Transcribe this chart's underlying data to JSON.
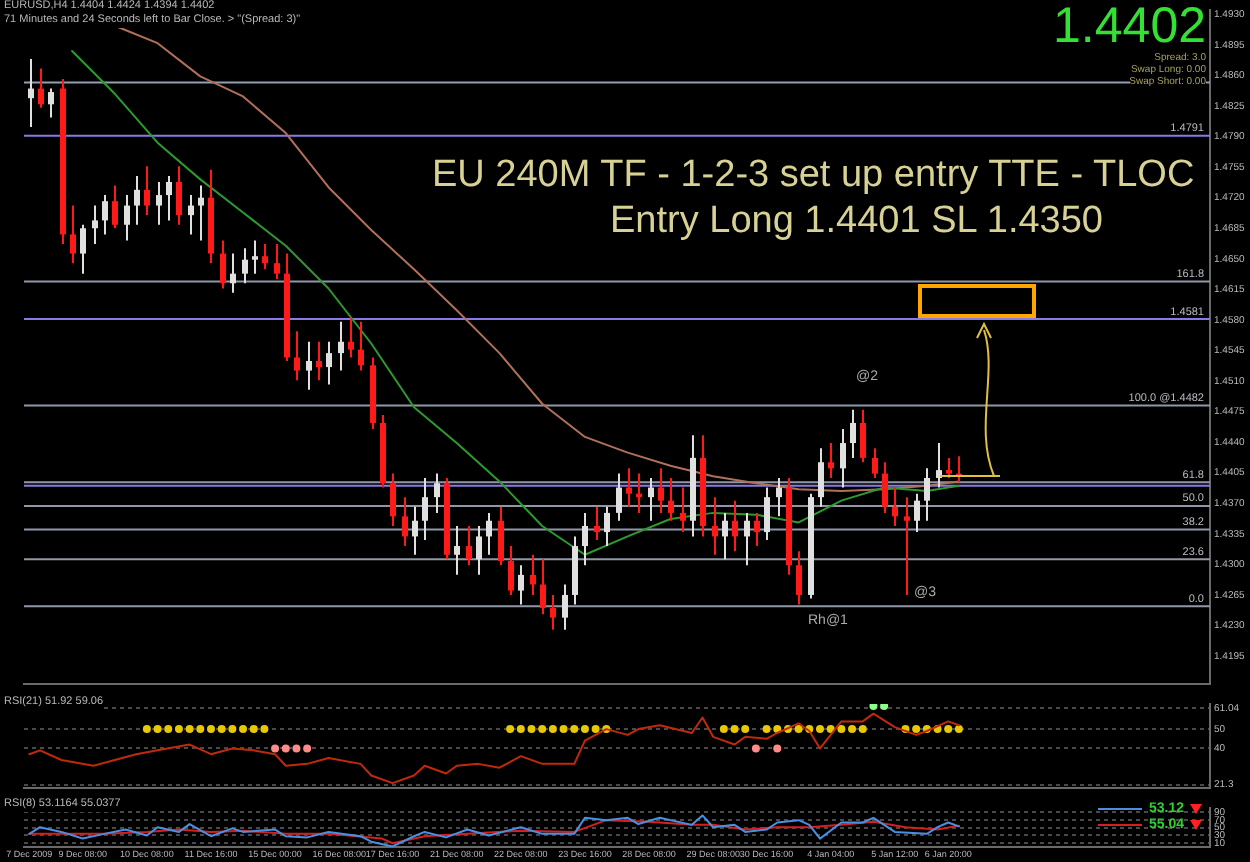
{
  "chart_data": [
    {
      "type": "candlestick",
      "title": "EU 240M TF - 1-2-3 set up entry TTE - TLOC",
      "subtitle": "Entry Long 1.4401 SL 1.4350",
      "annotations": [
        "EURUSD,H4 1.4404 1.4424 1.4394 1.4402",
        "71 Minutes and 24 Seconds left to Bar Close. > \"(Spread: 3)\"",
        "1.4402",
        "Spread: 3.0",
        "Swap Long: 0.00",
        "Swap Short: 0.00",
        "@2",
        "@3",
        "Rh@1",
        {
          "text": "161.8",
          "y": 1.4624
        },
        {
          "text": "61.8",
          "y": 1.4394
        },
        {
          "text": "50.0",
          "y": 1.4367
        },
        {
          "text": "38.2",
          "y": 1.434
        },
        {
          "text": "23.6",
          "y": 1.4306
        },
        {
          "text": "0.0",
          "y": 1.4252
        }
      ],
      "categories": [
        null,
        null,
        null,
        null,
        null,
        null,
        null,
        null,
        null,
        null,
        null,
        null,
        null,
        null,
        null,
        null,
        null,
        null,
        null,
        null,
        null,
        null,
        null,
        null,
        null,
        null,
        null,
        null,
        null,
        null,
        null,
        null,
        null,
        null,
        null,
        null,
        null,
        null,
        null,
        null,
        null,
        null,
        null,
        null,
        null,
        null,
        null,
        null,
        null,
        null,
        null,
        null,
        null,
        null,
        null,
        null,
        null,
        null,
        null,
        null,
        null,
        null,
        null,
        null,
        null,
        null,
        null,
        null,
        null,
        null,
        null,
        null,
        null,
        null,
        null,
        null,
        null,
        null,
        null,
        null,
        null,
        null,
        null,
        null,
        null,
        null,
        null,
        null,
        null,
        null,
        null,
        null,
        null,
        null,
        null,
        null,
        null,
        null,
        null,
        null,
        null,
        null,
        null,
        null,
        null,
        null,
        null,
        null,
        null,
        null,
        null
      ],
      "ohlc": [
        [
          1.4834,
          1.4879,
          1.4801,
          1.4845
        ],
        [
          1.4845,
          1.4868,
          1.4823,
          1.4827
        ],
        [
          1.4827,
          1.4845,
          1.4812,
          1.4841
        ],
        [
          1.4845,
          1.4856,
          1.4667,
          1.4678
        ],
        [
          1.4678,
          1.4711,
          1.4645,
          1.4656
        ],
        [
          1.4656,
          1.4689,
          1.4633,
          1.4685
        ],
        [
          1.4685,
          1.4711,
          1.4667,
          1.4694
        ],
        [
          1.4694,
          1.4723,
          1.4678,
          1.4716
        ],
        [
          1.4716,
          1.4734,
          1.4685,
          1.4689
        ],
        [
          1.4689,
          1.4723,
          1.4671,
          1.4711
        ],
        [
          1.4711,
          1.4745,
          1.4689,
          1.4729
        ],
        [
          1.4729,
          1.4756,
          1.47,
          1.4711
        ],
        [
          1.4711,
          1.4738,
          1.4689,
          1.4723
        ],
        [
          1.4723,
          1.4745,
          1.4694,
          1.4738
        ],
        [
          1.4738,
          1.4756,
          1.4689,
          1.47
        ],
        [
          1.47,
          1.4723,
          1.4678,
          1.4711
        ],
        [
          1.4711,
          1.4734,
          1.4671,
          1.472
        ],
        [
          1.472,
          1.4752,
          1.4645,
          1.4656
        ],
        [
          1.4656,
          1.4671,
          1.4616,
          1.4622
        ],
        [
          1.4622,
          1.4656,
          1.4611,
          1.4633
        ],
        [
          1.4633,
          1.4662,
          1.4622,
          1.4649
        ],
        [
          1.4649,
          1.4671,
          1.4633,
          1.4653
        ],
        [
          1.4653,
          1.4667,
          1.4638,
          1.4645
        ],
        [
          1.4645,
          1.4667,
          1.4627,
          1.4633
        ],
        [
          1.4633,
          1.4656,
          1.4533,
          1.4537
        ],
        [
          1.4537,
          1.4567,
          1.4511,
          1.4522
        ],
        [
          1.4522,
          1.4555,
          1.45,
          1.4533
        ],
        [
          1.4533,
          1.4555,
          1.4511,
          1.4526
        ],
        [
          1.4526,
          1.4555,
          1.4506,
          1.4542
        ],
        [
          1.4542,
          1.4578,
          1.4522,
          1.4555
        ],
        [
          1.4555,
          1.4582,
          1.4537,
          1.4546
        ],
        [
          1.4546,
          1.4578,
          1.4522,
          1.4528
        ],
        [
          1.4528,
          1.4537,
          1.4455,
          1.4462
        ],
        [
          1.4462,
          1.4471,
          1.4388,
          1.4393
        ],
        [
          1.4393,
          1.4404,
          1.4344,
          1.4355
        ],
        [
          1.4355,
          1.4377,
          1.4321,
          1.4332
        ],
        [
          1.4332,
          1.4366,
          1.4311,
          1.435
        ],
        [
          1.435,
          1.4399,
          1.4328,
          1.4377
        ],
        [
          1.4377,
          1.4404,
          1.4359,
          1.4393
        ],
        [
          1.4393,
          1.4399,
          1.4306,
          1.4311
        ],
        [
          1.4311,
          1.4344,
          1.4288,
          1.4321
        ],
        [
          1.4321,
          1.4344,
          1.4299,
          1.4306
        ],
        [
          1.4306,
          1.4344,
          1.4288,
          1.4332
        ],
        [
          1.4332,
          1.4359,
          1.4311,
          1.435
        ],
        [
          1.435,
          1.4366,
          1.4299,
          1.4304
        ],
        [
          1.4304,
          1.4321,
          1.4265,
          1.427
        ],
        [
          1.427,
          1.4299,
          1.4254,
          1.4288
        ],
        [
          1.4288,
          1.4311,
          1.4265,
          1.4277
        ],
        [
          1.4277,
          1.4306,
          1.4243,
          1.425
        ],
        [
          1.425,
          1.4265,
          1.4225,
          1.4239
        ],
        [
          1.4239,
          1.4277,
          1.4225,
          1.4265
        ],
        [
          1.4265,
          1.4332,
          1.4254,
          1.4321
        ],
        [
          1.4321,
          1.4359,
          1.4299,
          1.4344
        ],
        [
          1.4344,
          1.4366,
          1.4328,
          1.4337
        ],
        [
          1.4337,
          1.4366,
          1.4321,
          1.4359
        ],
        [
          1.4359,
          1.4404,
          1.435,
          1.4388
        ],
        [
          1.4388,
          1.441,
          1.4366,
          1.4381
        ],
        [
          1.4381,
          1.4404,
          1.4359,
          1.4377
        ],
        [
          1.4377,
          1.4399,
          1.435,
          1.4388
        ],
        [
          1.4388,
          1.441,
          1.4359,
          1.4373
        ],
        [
          1.4373,
          1.4399,
          1.435,
          1.4359
        ],
        [
          1.4359,
          1.4388,
          1.4337,
          1.435
        ],
        [
          1.435,
          1.4448,
          1.4332,
          1.4422
        ],
        [
          1.4422,
          1.4448,
          1.4332,
          1.4344
        ],
        [
          1.4344,
          1.4377,
          1.4311,
          1.4332
        ],
        [
          1.4332,
          1.4359,
          1.4306,
          1.435
        ],
        [
          1.435,
          1.4373,
          1.4315,
          1.4332
        ],
        [
          1.4332,
          1.4359,
          1.4299,
          1.435
        ],
        [
          1.435,
          1.4359,
          1.4321,
          1.4337
        ],
        [
          1.4337,
          1.4388,
          1.4328,
          1.4377
        ],
        [
          1.4377,
          1.4399,
          1.4355,
          1.4388
        ],
        [
          1.4388,
          1.4399,
          1.4288,
          1.4299
        ],
        [
          1.4299,
          1.4315,
          1.4254,
          1.4265
        ],
        [
          1.4265,
          1.4381,
          1.4261,
          1.4377
        ],
        [
          1.4377,
          1.4433,
          1.4366,
          1.4417
        ],
        [
          1.4417,
          1.4439,
          1.4399,
          1.441
        ],
        [
          1.441,
          1.4455,
          1.4388,
          1.4439
        ],
        [
          1.4439,
          1.4477,
          1.4422,
          1.4462
        ],
        [
          1.4462,
          1.4477,
          1.4417,
          1.4422
        ],
        [
          1.4422,
          1.4433,
          1.4399,
          1.4404
        ],
        [
          1.4404,
          1.4417,
          1.4359,
          1.4366
        ],
        [
          1.4366,
          1.4388,
          1.4344,
          1.4355
        ],
        [
          1.4355,
          1.4377,
          1.4265,
          1.435
        ],
        [
          1.435,
          1.4381,
          1.4337,
          1.4373
        ],
        [
          1.4373,
          1.441,
          1.435,
          1.4399
        ],
        [
          1.4399,
          1.4439,
          1.4388,
          1.4408
        ],
        [
          1.4408,
          1.4422,
          1.4399,
          1.4404
        ],
        [
          1.4404,
          1.4424,
          1.4394,
          1.4402
        ],
        null,
        null,
        null,
        null,
        null,
        null,
        null,
        null,
        null,
        null,
        null,
        null,
        null,
        null,
        null,
        null,
        null,
        null,
        null,
        null,
        null,
        null,
        null
      ],
      "series": [
        {
          "type": "line",
          "color": "#2e9a2e",
          "values": [
            null,
            null,
            null,
            null,
            1.4888,
            null,
            null,
            null,
            1.4839,
            null,
            null,
            null,
            1.4783,
            null,
            null,
            null,
            1.4741,
            null,
            null,
            null,
            1.4703,
            null,
            null,
            null,
            1.4665,
            null,
            null,
            null,
            1.4616,
            null,
            null,
            null,
            1.4553,
            null,
            null,
            null,
            1.448,
            null,
            null,
            null,
            1.4439,
            null,
            null,
            null,
            1.4395,
            null,
            null,
            null,
            1.4344,
            null,
            null,
            null,
            1.4311,
            null,
            null,
            null,
            1.4332,
            null,
            null,
            null,
            1.4352,
            null,
            null,
            null,
            1.4359,
            null,
            null,
            null,
            1.4357,
            null,
            null,
            null,
            1.4348,
            null,
            null,
            null,
            1.4373,
            null,
            null,
            null,
            1.4388,
            null,
            null,
            null,
            1.4384,
            null,
            null,
            1.439,
            null,
            null,
            null,
            null,
            null,
            null,
            null,
            null,
            null,
            null,
            null,
            null,
            null,
            null,
            null,
            null,
            null,
            null,
            null,
            null,
            null,
            null,
            null
          ]
        },
        {
          "type": "line",
          "color": "#b0705a",
          "values": [
            null,
            null,
            null,
            null,
            null,
            null,
            null,
            null,
            1.4917,
            null,
            null,
            null,
            1.4897,
            null,
            null,
            null,
            1.4859,
            null,
            null,
            null,
            1.4836,
            null,
            null,
            null,
            1.4794,
            null,
            null,
            null,
            1.4732,
            null,
            null,
            null,
            1.4683,
            null,
            null,
            null,
            1.4638,
            null,
            null,
            null,
            1.4591,
            null,
            null,
            null,
            1.4542,
            null,
            null,
            null,
            1.4484,
            null,
            null,
            null,
            1.4446,
            null,
            null,
            null,
            1.4428,
            null,
            null,
            null,
            1.4413,
            null,
            null,
            null,
            1.4401,
            null,
            null,
            null,
            1.4393,
            null,
            null,
            null,
            1.4386,
            null,
            null,
            null,
            1.4384,
            null,
            null,
            null,
            1.4386,
            null,
            null,
            null,
            1.439,
            null,
            null,
            1.4395,
            null,
            null,
            null,
            null,
            null,
            null,
            null,
            null,
            null,
            null,
            null,
            null,
            null,
            null,
            null,
            null,
            null,
            null,
            null,
            null,
            null,
            null,
            null
          ]
        }
      ],
      "ylim": [
        1.4163,
        1.4935
      ],
      "yticks": [
        1.4195,
        {
          "value": 1.423,
          "label": "1.4230"
        },
        1.4265,
        {
          "value": 1.43,
          "label": "1.4300"
        },
        1.4335,
        {
          "value": 1.437,
          "label": "1.4370"
        },
        1.4405,
        {
          "value": 1.444,
          "label": "1.4440"
        },
        1.4475,
        {
          "value": 1.451,
          "label": "1.4510"
        },
        1.4545,
        {
          "value": 1.458,
          "label": "1.4580"
        },
        1.4615,
        {
          "value": 1.465,
          "label": "1.4650"
        },
        1.4685,
        {
          "value": 1.472,
          "label": "1.4720"
        },
        1.4755,
        {
          "value": 1.479,
          "label": "1.4790"
        },
        1.4825,
        {
          "value": 1.486,
          "label": "1.4860"
        },
        1.4895,
        {
          "value": 1.493,
          "label": "1.4930"
        }
      ],
      "ref_lines": [
        {
          "axis": "y",
          "value": 1.4852,
          "color": "#8fa0b0"
        },
        {
          "axis": "y",
          "value": 1.4791,
          "label": "1.4791",
          "color": "#8a7ae6"
        },
        {
          "axis": "y",
          "value": 1.4624,
          "color": "#9098a8"
        },
        {
          "axis": "y",
          "value": 1.4581,
          "label": "1.4581",
          "color": "#8a7ae6"
        },
        {
          "axis": "y",
          "value": 1.4482,
          "label": "100.0 @1.4482",
          "color": "#9098a8"
        },
        {
          "axis": "y",
          "value": 1.4394,
          "color": "#9098a8"
        },
        {
          "axis": "y",
          "value": 1.439,
          "color": "#8a7ae6"
        },
        {
          "axis": "y",
          "value": 1.4367,
          "color": "#9098a8"
        },
        {
          "axis": "y",
          "value": 1.434,
          "color": "#9098a8"
        },
        {
          "axis": "y",
          "value": 1.4306,
          "color": "#9098a8"
        },
        {
          "axis": "y",
          "value": 1.4252,
          "color": "#9098a8"
        }
      ],
      "tick_labels": "y"
    },
    {
      "type": "line",
      "title": "RSI(21) 51.92 59.06",
      "categories": [
        null,
        null,
        null,
        null,
        null,
        null,
        null,
        null,
        null,
        null,
        null,
        null,
        null,
        null,
        null,
        null,
        null,
        null,
        null,
        null,
        null,
        null,
        null,
        null,
        null,
        null,
        null,
        null,
        null,
        null,
        null,
        null,
        null,
        null,
        null,
        null,
        null,
        null,
        null,
        null,
        null,
        null,
        null,
        null,
        null,
        null,
        null,
        null,
        null,
        null,
        null,
        null,
        null,
        null,
        null,
        null,
        null,
        null,
        null,
        null,
        null,
        null,
        null,
        null,
        null,
        null,
        null,
        null,
        null,
        null,
        null,
        null,
        null,
        null,
        null,
        null,
        null,
        null,
        null,
        null,
        null,
        null,
        null,
        null,
        null,
        null,
        null,
        null,
        null,
        null,
        null,
        null,
        null,
        null,
        null,
        null,
        null,
        null,
        null,
        null,
        null,
        null,
        null,
        null,
        null,
        null,
        null,
        null,
        null,
        null,
        null
      ],
      "series": [
        {
          "color": "#c02a0a",
          "values": [
            37,
            39,
            null,
            34,
            null,
            null,
            31,
            null,
            34,
            null,
            37,
            null,
            39,
            null,
            null,
            42,
            null,
            37,
            null,
            40,
            null,
            39,
            null,
            37,
            31,
            null,
            32,
            null,
            35,
            null,
            null,
            32,
            26,
            null,
            22,
            null,
            26,
            31,
            null,
            27,
            31,
            null,
            32,
            null,
            30,
            null,
            36,
            null,
            32,
            null,
            null,
            32,
            44,
            null,
            50,
            null,
            47,
            50,
            null,
            52,
            null,
            null,
            48,
            56,
            46,
            null,
            42,
            46,
            null,
            45,
            48,
            null,
            53,
            49,
            40,
            null,
            54,
            null,
            54,
            58,
            null,
            51,
            null,
            47,
            49,
            null,
            54,
            52,
            null,
            null,
            null,
            null,
            null,
            null,
            null,
            null,
            null,
            null,
            null,
            null,
            null,
            null,
            null,
            null,
            null,
            null,
            null,
            null,
            null,
            null,
            null
          ]
        },
        {
          "type": "scatter",
          "marker": "circle",
          "color": "#e8c800",
          "values": [
            null,
            null,
            null,
            null,
            null,
            null,
            null,
            null,
            null,
            null,
            null,
            50,
            50,
            50,
            50,
            50,
            50,
            50,
            50,
            50,
            50,
            50,
            50,
            null,
            null,
            null,
            null,
            null,
            null,
            null,
            null,
            null,
            null,
            null,
            null,
            null,
            null,
            null,
            null,
            null,
            null,
            null,
            null,
            null,
            null,
            50,
            50,
            50,
            50,
            50,
            50,
            50,
            50,
            50,
            50,
            null,
            null,
            null,
            null,
            null,
            null,
            null,
            null,
            null,
            null,
            50,
            50,
            50,
            null,
            50,
            50,
            50,
            50,
            50,
            50,
            50,
            50,
            50,
            50,
            null,
            null,
            null,
            50,
            50,
            50,
            50,
            50,
            50,
            null,
            null,
            null,
            null,
            null,
            null,
            null,
            null,
            null,
            null,
            null,
            null,
            null,
            null,
            null,
            null,
            null,
            null,
            null,
            null,
            null,
            null,
            null
          ]
        },
        {
          "type": "scatter",
          "marker": "circle",
          "color": "#ff8a8a",
          "values": [
            null,
            null,
            null,
            null,
            null,
            null,
            null,
            null,
            null,
            null,
            null,
            null,
            null,
            null,
            null,
            null,
            null,
            null,
            null,
            null,
            null,
            null,
            null,
            40,
            40,
            40,
            40,
            null,
            null,
            null,
            null,
            null,
            null,
            null,
            null,
            null,
            null,
            null,
            null,
            null,
            null,
            null,
            null,
            null,
            null,
            null,
            null,
            null,
            null,
            null,
            null,
            null,
            null,
            null,
            null,
            null,
            null,
            null,
            null,
            null,
            null,
            null,
            null,
            null,
            null,
            null,
            null,
            null,
            40,
            null,
            40,
            null,
            null,
            null,
            null,
            null,
            null,
            null,
            null,
            null,
            null,
            null,
            null,
            null,
            null,
            null,
            null,
            null,
            null,
            null,
            null,
            null,
            null,
            null,
            null,
            null,
            null,
            null,
            null,
            null,
            null,
            null,
            null,
            null,
            null,
            null,
            null,
            null,
            null,
            null,
            null
          ]
        },
        {
          "type": "scatter",
          "marker": "circle",
          "color": "#8aff8a",
          "values": [
            null,
            null,
            null,
            null,
            null,
            null,
            null,
            null,
            null,
            null,
            null,
            null,
            null,
            null,
            null,
            null,
            null,
            null,
            null,
            null,
            null,
            null,
            null,
            null,
            null,
            null,
            null,
            null,
            null,
            null,
            null,
            null,
            null,
            null,
            null,
            null,
            null,
            null,
            null,
            null,
            null,
            null,
            null,
            null,
            null,
            null,
            null,
            null,
            null,
            null,
            null,
            null,
            null,
            null,
            null,
            null,
            null,
            null,
            null,
            null,
            null,
            null,
            null,
            null,
            null,
            null,
            null,
            null,
            null,
            null,
            null,
            null,
            null,
            null,
            null,
            null,
            null,
            null,
            null,
            62,
            62,
            null,
            null,
            null,
            null,
            null,
            null,
            null,
            null,
            null,
            null,
            null,
            null,
            null,
            null,
            null,
            null,
            null,
            null,
            null,
            null,
            null,
            null,
            null,
            null,
            null,
            null,
            null,
            null,
            null,
            null
          ]
        }
      ],
      "ylim": [
        19.5,
        63
      ],
      "yticks": [
        21.3,
        40,
        50,
        61.04
      ],
      "grid": "y",
      "tick_labels": "y"
    },
    {
      "type": "line",
      "title": "RSI(8) 53.1164 55.0377",
      "categories": [
        "7 Dec 2009",
        null,
        null,
        null,
        null,
        "9 Dec 08:00",
        null,
        null,
        null,
        null,
        null,
        "10 Dec 08:00",
        null,
        null,
        null,
        null,
        null,
        "11 Dec 16:00",
        null,
        null,
        null,
        null,
        null,
        "15 Dec 00:00",
        null,
        null,
        null,
        null,
        null,
        "16 Dec 08:00",
        null,
        null,
        null,
        null,
        "17 Dec 16:00",
        null,
        null,
        null,
        null,
        null,
        "21 Dec 08:00",
        null,
        null,
        null,
        null,
        null,
        "22 Dec 08:00",
        null,
        null,
        null,
        null,
        null,
        "23 Dec 16:00",
        null,
        null,
        null,
        null,
        null,
        "28 Dec 08:00",
        null,
        null,
        null,
        null,
        null,
        "29 Dec 08:00",
        null,
        null,
        null,
        null,
        "30 Dec 16:00",
        null,
        null,
        null,
        null,
        null,
        "4 Jan 04:00",
        null,
        null,
        null,
        null,
        null,
        "5 Jan 12:00",
        null,
        null,
        null,
        null,
        "6 Jan 20:00",
        null,
        null,
        null,
        null,
        null,
        null,
        null,
        null,
        null,
        null,
        null,
        null,
        null,
        null,
        null,
        null,
        null,
        null,
        null,
        null,
        null,
        null,
        null,
        null
      ],
      "series": [
        {
          "name": "53.12",
          "color": "#4a90e2",
          "values": [
            34,
            51,
            null,
            39,
            null,
            22,
            null,
            34,
            null,
            45,
            null,
            30,
            51,
            null,
            39,
            59,
            null,
            28,
            null,
            48,
            39,
            null,
            null,
            45,
            28,
            null,
            25,
            null,
            39,
            null,
            null,
            28,
            14,
            null,
            2,
            null,
            28,
            39,
            null,
            25,
            null,
            45,
            null,
            30,
            null,
            null,
            51,
            null,
            34,
            null,
            null,
            34,
            75,
            null,
            69,
            null,
            75,
            59,
            null,
            75,
            null,
            null,
            57,
            81,
            51,
            null,
            57,
            39,
            null,
            45,
            63,
            null,
            69,
            57,
            22,
            null,
            63,
            null,
            63,
            75,
            null,
            39,
            null,
            null,
            34,
            51,
            63,
            53,
            null,
            null,
            null,
            null,
            null,
            null,
            null,
            null,
            null,
            null,
            null,
            null,
            null,
            null,
            null,
            null,
            null,
            null,
            null,
            null,
            null,
            null,
            null
          ]
        },
        {
          "name": "55.04",
          "color": "#d42020",
          "values": [
            34,
            null,
            null,
            34,
            null,
            null,
            null,
            34,
            null,
            null,
            null,
            39,
            null,
            null,
            45,
            null,
            null,
            39,
            null,
            null,
            42,
            null,
            null,
            null,
            34,
            null,
            null,
            null,
            34,
            null,
            null,
            null,
            null,
            22,
            10,
            null,
            null,
            28,
            null,
            null,
            null,
            34,
            null,
            null,
            null,
            null,
            42,
            null,
            null,
            null,
            null,
            39,
            null,
            null,
            69,
            null,
            null,
            null,
            65,
            null,
            null,
            null,
            57,
            null,
            57,
            null,
            null,
            45,
            null,
            null,
            51,
            null,
            null,
            51,
            null,
            null,
            57,
            null,
            null,
            65,
            null,
            null,
            51,
            null,
            null,
            45,
            null,
            55,
            null,
            null,
            null,
            null,
            null,
            null,
            null,
            null,
            null,
            null,
            null,
            null,
            null,
            null,
            null,
            null,
            null,
            null,
            null,
            null,
            null,
            null,
            null
          ]
        }
      ],
      "ylim": [
        0,
        100
      ],
      "yticks": [
        10,
        30,
        50,
        70,
        90
      ],
      "grid": "y",
      "legend": "right"
    }
  ]
}
